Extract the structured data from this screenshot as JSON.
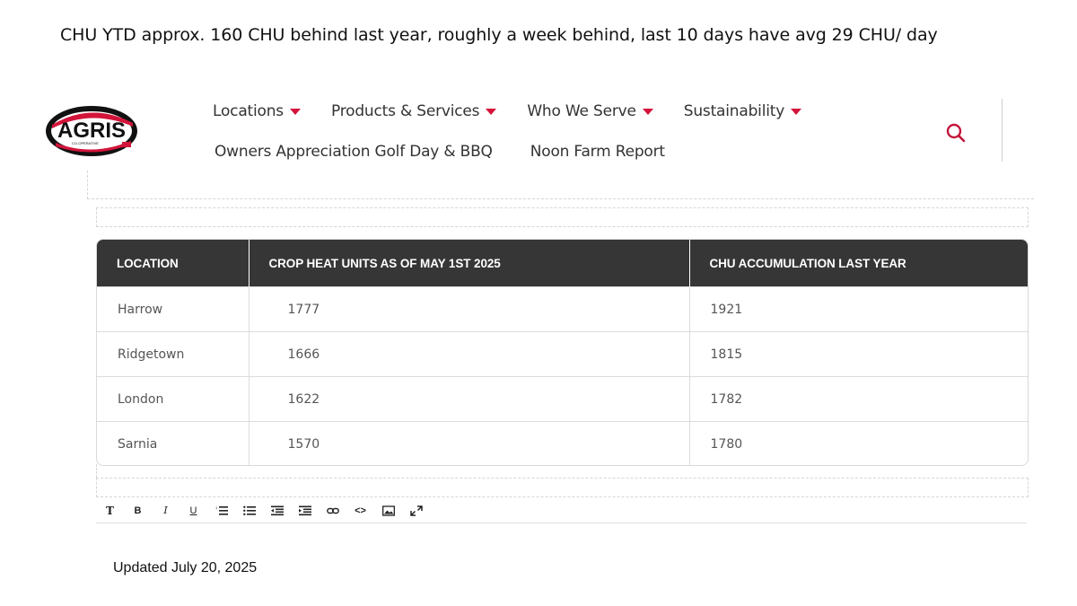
{
  "caption": "CHU YTD approx. 160 CHU behind last year,  roughly a  week  behind,  last 10 days have avg 29 CHU/ day",
  "logo": {
    "text": "AGRIS",
    "subtext": "CO-OPERATIVE",
    "icon": "agris-logo"
  },
  "nav": {
    "row1": [
      {
        "label": "Locations",
        "has_dropdown": true
      },
      {
        "label": "Products & Services",
        "has_dropdown": true
      },
      {
        "label": "Who We Serve",
        "has_dropdown": true
      },
      {
        "label": "Sustainability",
        "has_dropdown": true
      }
    ],
    "row2": [
      {
        "label": "Owners Appreciation Golf Day & BBQ"
      },
      {
        "label": "Noon Farm Report"
      }
    ]
  },
  "search_icon": "search-icon",
  "table": {
    "headers": [
      "LOCATION",
      "CROP HEAT UNITS AS OF MAY 1ST 2025",
      "CHU ACCUMULATION LAST YEAR"
    ],
    "rows": [
      [
        "Harrow",
        "1777",
        "1921"
      ],
      [
        "Ridgetown",
        "1666",
        "1815"
      ],
      [
        "London",
        "1622",
        "1782"
      ],
      [
        "Sarnia",
        "1570",
        "1780"
      ]
    ]
  },
  "toolbar": {
    "buttons": [
      {
        "name": "text-format",
        "glyph": "T"
      },
      {
        "name": "bold",
        "glyph": "B"
      },
      {
        "name": "italic",
        "glyph": "I"
      },
      {
        "name": "underline",
        "glyph": "U"
      },
      {
        "name": "ordered-list",
        "glyph": ""
      },
      {
        "name": "unordered-list",
        "glyph": ""
      },
      {
        "name": "outdent",
        "glyph": ""
      },
      {
        "name": "indent",
        "glyph": ""
      },
      {
        "name": "link",
        "glyph": ""
      },
      {
        "name": "code",
        "glyph": "<>"
      },
      {
        "name": "image",
        "glyph": ""
      },
      {
        "name": "fullscreen",
        "glyph": ""
      }
    ]
  },
  "updated": "Updated July 20, 2025",
  "colors": {
    "accent": "#d3143a",
    "header_bg": "#363636"
  }
}
